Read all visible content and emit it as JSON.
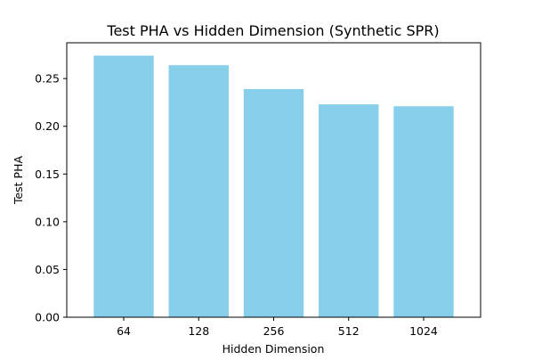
{
  "chart_data": {
    "type": "bar",
    "title": "Test PHA vs Hidden Dimension (Synthetic SPR)",
    "xlabel": "Hidden Dimension",
    "ylabel": "Test PHA",
    "categories": [
      "64",
      "128",
      "256",
      "512",
      "1024"
    ],
    "values": [
      0.274,
      0.264,
      0.239,
      0.223,
      0.221
    ],
    "ylim": [
      0,
      0.2875
    ],
    "yticks": [
      0.0,
      0.05,
      0.1,
      0.15,
      0.2,
      0.25
    ],
    "ytick_labels": [
      "0.00",
      "0.05",
      "0.10",
      "0.15",
      "0.20",
      "0.25"
    ],
    "grid": false,
    "legend": "none",
    "colors": {
      "bar": "#87ceeb",
      "axes": "#000000",
      "background": "#ffffff"
    }
  }
}
